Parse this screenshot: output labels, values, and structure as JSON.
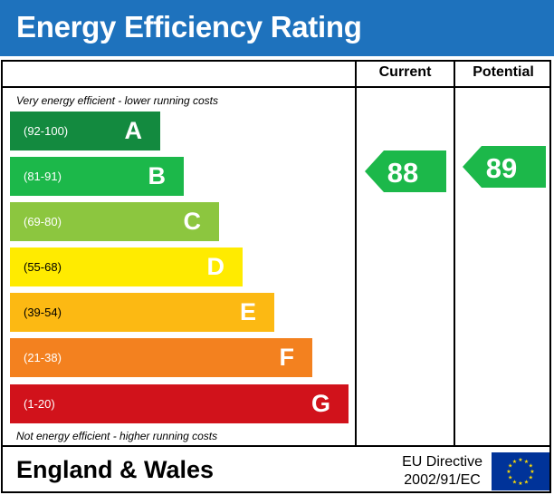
{
  "header": {
    "title": "Energy Efficiency Rating"
  },
  "columns": {
    "current": "Current",
    "potential": "Potential"
  },
  "notes": {
    "top": "Very energy efficient - lower running costs",
    "bottom": "Not energy efficient - higher running costs"
  },
  "colors": {
    "header_bg": "#1e72bd",
    "A": "#138a3f",
    "B": "#1cb84a",
    "C": "#8cc63f",
    "D": "#ffeb00",
    "E": "#fcb913",
    "F": "#f3811f",
    "G": "#d1121b",
    "eu_flag": "#003399",
    "eu_stars": "#ffdd00"
  },
  "chart_data": {
    "type": "bar",
    "categories": [
      "A",
      "B",
      "C",
      "D",
      "E",
      "F",
      "G"
    ],
    "ranges": [
      "(92-100)",
      "(81-91)",
      "(69-80)",
      "(55-68)",
      "(39-54)",
      "(21-38)",
      "(1-20)"
    ],
    "range_min": [
      92,
      81,
      69,
      55,
      39,
      21,
      1
    ],
    "current": {
      "value": 88,
      "label": "88",
      "band": "B"
    },
    "potential": {
      "value": 89,
      "label": "89",
      "band": "B"
    }
  },
  "footer": {
    "region": "England & Wales",
    "directive_line1": "EU Directive",
    "directive_line2": "2002/91/EC",
    "flag_icon": "eu-flag-icon"
  }
}
